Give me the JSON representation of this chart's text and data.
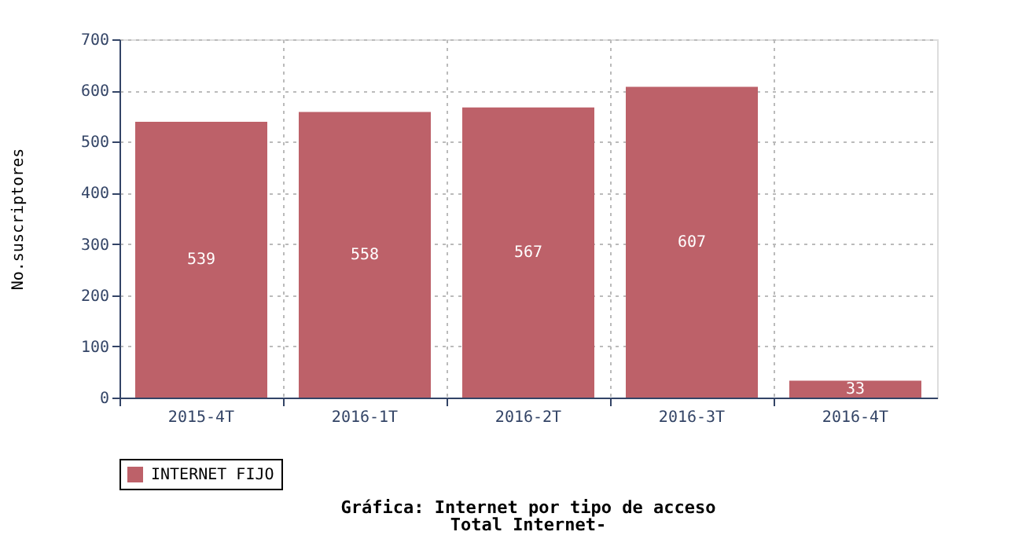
{
  "chart_data": {
    "type": "bar",
    "title": "Gráfica: Internet por tipo de acceso",
    "subtitle": "Total Internet-",
    "ylabel": "No.suscriptores",
    "categories": [
      "2015-4T",
      "2016-1T",
      "2016-2T",
      "2016-3T",
      "2016-4T"
    ],
    "series": [
      {
        "name": "INTERNET FIJO",
        "color": "#bd6169",
        "values": [
          539,
          558,
          567,
          607,
          33
        ]
      }
    ],
    "ylim": [
      0,
      700
    ],
    "yticks": [
      0,
      100,
      200,
      300,
      400,
      500,
      600,
      700
    ],
    "grid": true,
    "legend": "bottom",
    "data_labels": true
  }
}
